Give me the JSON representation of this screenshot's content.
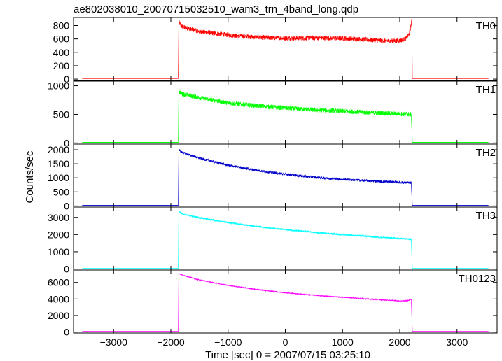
{
  "chart_data": {
    "type": "line",
    "title": "ae802038010_20070715032510_wam3_trn_4band_long.qdp",
    "xlabel": "Time [sec] 0 = 2007/07/15 03:25:10",
    "ylabel": "Counts/sec",
    "xlim": [
      -3700,
      3700
    ],
    "x_ticks": [
      -3000,
      -2000,
      -1000,
      0,
      1000,
      2000,
      3000
    ],
    "x_tick_labels": [
      "−3000",
      "−2000",
      "−1000",
      "0",
      "1000",
      "2000",
      "3000"
    ],
    "grid": false,
    "panels": [
      {
        "name": "TH0",
        "color": "#ff0000",
        "ylim": [
          -20,
          920
        ],
        "y_ticks": [
          0,
          200,
          400,
          600,
          800
        ],
        "y_tick_labels": [
          "0",
          "200",
          "400",
          "600",
          "800"
        ],
        "background": 10,
        "noise": 70,
        "points": [
          [
            -3550,
            10
          ],
          [
            -1870,
            10
          ],
          [
            -1860,
            850
          ],
          [
            -1800,
            780
          ],
          [
            -1500,
            710
          ],
          [
            -1000,
            660
          ],
          [
            -500,
            625
          ],
          [
            0,
            610
          ],
          [
            500,
            615
          ],
          [
            1000,
            610
          ],
          [
            1500,
            585
          ],
          [
            1800,
            570
          ],
          [
            2000,
            575
          ],
          [
            2100,
            600
          ],
          [
            2150,
            650
          ],
          [
            2180,
            720
          ],
          [
            2210,
            880
          ],
          [
            2220,
            10
          ],
          [
            3550,
            10
          ]
        ]
      },
      {
        "name": "TH1",
        "color": "#00ff00",
        "ylim": [
          -20,
          1080
        ],
        "y_ticks": [
          0,
          500,
          1000
        ],
        "y_tick_labels": [
          "0",
          "500",
          "1000"
        ],
        "background": 10,
        "noise": 80,
        "points": [
          [
            -3550,
            10
          ],
          [
            -1870,
            10
          ],
          [
            -1860,
            900
          ],
          [
            -1800,
            860
          ],
          [
            -1500,
            790
          ],
          [
            -1000,
            700
          ],
          [
            -500,
            650
          ],
          [
            0,
            610
          ],
          [
            500,
            580
          ],
          [
            1000,
            555
          ],
          [
            1500,
            530
          ],
          [
            2000,
            510
          ],
          [
            2200,
            500
          ],
          [
            2220,
            10
          ],
          [
            3550,
            10
          ]
        ]
      },
      {
        "name": "TH2",
        "color": "#0000cc",
        "ylim": [
          -40,
          2200
        ],
        "y_ticks": [
          0,
          500,
          1000,
          1500,
          2000
        ],
        "y_tick_labels": [
          "0",
          "500",
          "1000",
          "1500",
          "2000"
        ],
        "background": 20,
        "noise": 90,
        "points": [
          [
            -3550,
            20
          ],
          [
            -1870,
            20
          ],
          [
            -1860,
            2000
          ],
          [
            -1800,
            1900
          ],
          [
            -1500,
            1700
          ],
          [
            -1000,
            1450
          ],
          [
            -500,
            1270
          ],
          [
            0,
            1130
          ],
          [
            500,
            1020
          ],
          [
            1000,
            950
          ],
          [
            1500,
            890
          ],
          [
            2000,
            840
          ],
          [
            2200,
            820
          ],
          [
            2220,
            20
          ],
          [
            3550,
            20
          ]
        ]
      },
      {
        "name": "TH3",
        "color": "#00ffff",
        "ylim": [
          -60,
          3600
        ],
        "y_ticks": [
          0,
          1000,
          2000,
          3000
        ],
        "y_tick_labels": [
          "0",
          "1000",
          "2000",
          "3000"
        ],
        "background": 30,
        "noise": 100,
        "points": [
          [
            -3550,
            30
          ],
          [
            -1870,
            30
          ],
          [
            -1860,
            3350
          ],
          [
            -1800,
            3200
          ],
          [
            -1500,
            2980
          ],
          [
            -1000,
            2700
          ],
          [
            -500,
            2470
          ],
          [
            0,
            2290
          ],
          [
            500,
            2130
          ],
          [
            1000,
            2000
          ],
          [
            1500,
            1880
          ],
          [
            2000,
            1770
          ],
          [
            2200,
            1730
          ],
          [
            2220,
            30
          ],
          [
            3550,
            30
          ]
        ]
      },
      {
        "name": "TH0123",
        "color": "#ff00ff",
        "ylim": [
          -120,
          7500
        ],
        "y_ticks": [
          0,
          2000,
          4000,
          6000
        ],
        "y_tick_labels": [
          "0",
          "2000",
          "4000",
          "6000"
        ],
        "background": 70,
        "noise": 120,
        "points": [
          [
            -3550,
            70
          ],
          [
            -1870,
            70
          ],
          [
            -1860,
            7100
          ],
          [
            -1800,
            6900
          ],
          [
            -1500,
            6300
          ],
          [
            -1000,
            5650
          ],
          [
            -500,
            5150
          ],
          [
            0,
            4750
          ],
          [
            500,
            4450
          ],
          [
            1000,
            4200
          ],
          [
            1500,
            3980
          ],
          [
            1800,
            3850
          ],
          [
            2000,
            3750
          ],
          [
            2150,
            3800
          ],
          [
            2200,
            4000
          ],
          [
            2220,
            70
          ],
          [
            3550,
            70
          ]
        ]
      }
    ]
  }
}
